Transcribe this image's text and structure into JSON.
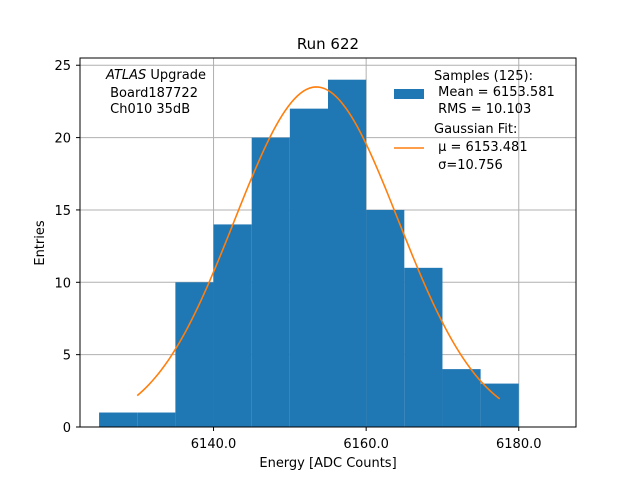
{
  "chart_data": {
    "type": "bar",
    "title": "Run 622",
    "xlabel": "Energy [ADC Counts]",
    "ylabel": "Entries",
    "xlim": [
      6122.5,
      6187.5
    ],
    "ylim": [
      0,
      25.5
    ],
    "xticks": [
      6140,
      6160,
      6180
    ],
    "xtick_labels": [
      "6140.0",
      "6160.0",
      "6180.0"
    ],
    "yticks": [
      0,
      5,
      10,
      15,
      20,
      25
    ],
    "ytick_labels": [
      "0",
      "5",
      "10",
      "15",
      "20",
      "25"
    ],
    "grid": true,
    "bin_edges": [
      6125,
      6130,
      6135,
      6140,
      6145,
      6150,
      6155,
      6160,
      6165,
      6170,
      6175,
      6180
    ],
    "counts": [
      1,
      1,
      10,
      14,
      20,
      22,
      24,
      15,
      11,
      4,
      3
    ],
    "bar_color": "#1f77b4",
    "fit": {
      "mu": 6153.481,
      "sigma": 10.756,
      "amplitude": 23.5,
      "x_range": [
        6130,
        6177.5
      ],
      "color": "#ff7f0e"
    },
    "annotation": {
      "line1_italic": "ATLAS",
      "line1_rest": " Upgrade",
      "line2": " Board187722",
      "line3": " Ch010 35dB"
    },
    "legend": {
      "position": "top-right",
      "samples_title": "Samples (125):",
      "samples_mean": " Mean = 6153.581",
      "samples_rms": " RMS = 10.103",
      "fit_title": "Gaussian Fit:",
      "fit_mu": " μ = 6153.481",
      "fit_sigma": " σ=10.756"
    }
  }
}
